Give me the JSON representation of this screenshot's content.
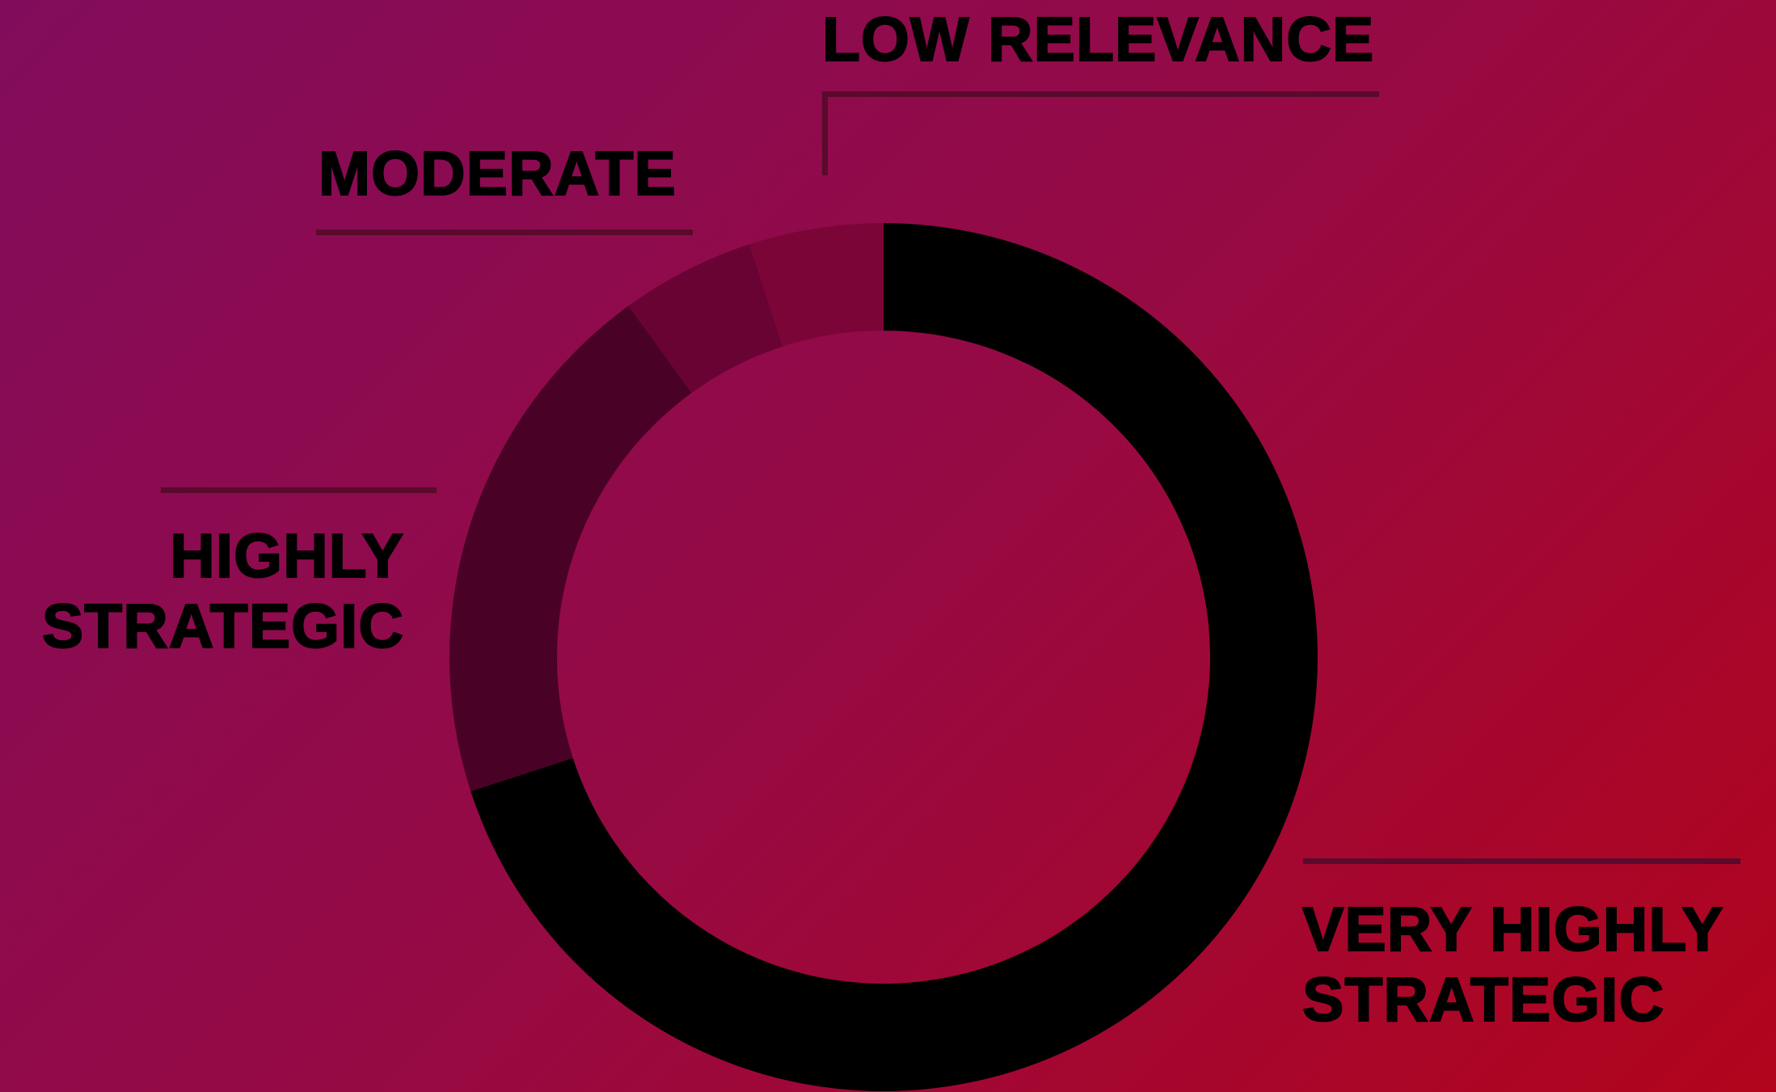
{
  "chart_data": {
    "type": "pie",
    "donut": true,
    "title": "",
    "legend": "none",
    "slices": [
      {
        "label": "VERY HIGHLY STRATEGIC",
        "value": 70,
        "color": "#000000"
      },
      {
        "label": "HIGHLY STRATEGIC",
        "value": 20,
        "color": "#4a0126"
      },
      {
        "label": "MODERATE",
        "value": 5,
        "color": "#680333"
      },
      {
        "label": "LOW RELEVANCE",
        "value": 5,
        "color": "#7c0538"
      }
    ]
  },
  "labels": {
    "low_relevance": "LOW RELEVANCE",
    "moderate": "MODERATE",
    "highly_line1": "HIGHLY",
    "highly_line2": "STRATEGIC",
    "very_line1": "VERY HIGHLY",
    "very_line2": "STRATEGIC"
  },
  "colors": {
    "background_start": "#820c5c",
    "background_mid": "#960a44",
    "background_end": "#b2041c",
    "leader_line": "#5a0a2c",
    "text": "#000000"
  }
}
